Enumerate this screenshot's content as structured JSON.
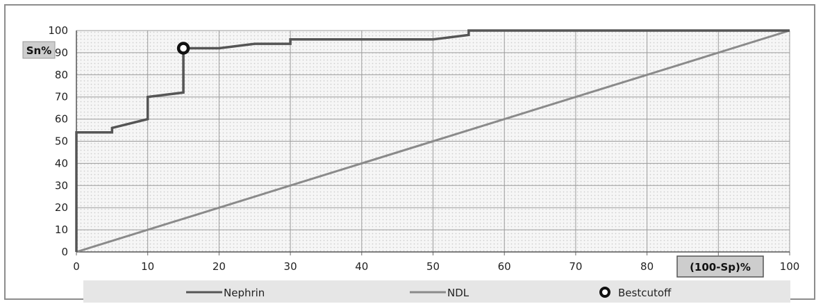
{
  "chart_data": {
    "type": "line",
    "xlabel": "(100-Sp)%",
    "ylabel": "Sn%",
    "xlim": [
      0,
      100
    ],
    "ylim": [
      0,
      100
    ],
    "xticks": [
      "0",
      "10",
      "20",
      "30",
      "40",
      "50",
      "60",
      "70",
      "80",
      "90",
      "100"
    ],
    "yticks": [
      "0",
      "10",
      "20",
      "30",
      "40",
      "50",
      "60",
      "70",
      "80",
      "90",
      "100"
    ],
    "grid": true,
    "legend_position": "bottom",
    "series": [
      {
        "name": "Nephrin",
        "color": "#555555",
        "x": [
          0,
          0,
          5,
          5,
          10,
          10,
          15,
          15,
          20,
          25,
          30,
          30,
          50,
          55,
          55,
          100
        ],
        "y": [
          0,
          54,
          54,
          56,
          60,
          70,
          72,
          92,
          92,
          94,
          94,
          96,
          96,
          98,
          100,
          100
        ]
      },
      {
        "name": "NDL",
        "color": "#8a8a8a",
        "x": [
          0,
          100
        ],
        "y": [
          0,
          100
        ]
      }
    ],
    "markers": [
      {
        "name": "Bestcutoff",
        "x": 15,
        "y": 92
      }
    ]
  }
}
